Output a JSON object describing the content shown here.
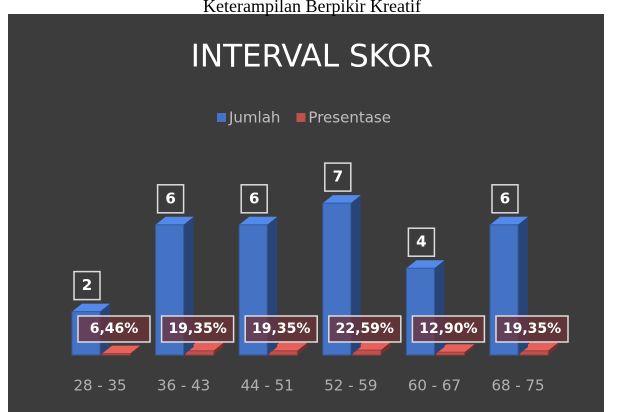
{
  "chart_data": {
    "type": "bar3d",
    "header": "Keterampilan Berpikir Kreatif",
    "title": "INTERVAL SKOR",
    "categories": [
      "28 - 35",
      "36 - 43",
      "44 - 51",
      "52 - 59",
      "60 - 67",
      "68 - 75"
    ],
    "series": [
      {
        "name": "Jumlah",
        "color": "#4472c4",
        "values": [
          2,
          6,
          6,
          7,
          4,
          6
        ]
      },
      {
        "name": "Presentase",
        "color": "#c0504d",
        "values": [
          6.46,
          19.35,
          19.35,
          22.59,
          12.9,
          19.35
        ],
        "value_labels": [
          "6,46%",
          "19,35%",
          "19,35%",
          "22,59%",
          "12,90%",
          "19,35%"
        ]
      }
    ],
    "legend": "top"
  }
}
